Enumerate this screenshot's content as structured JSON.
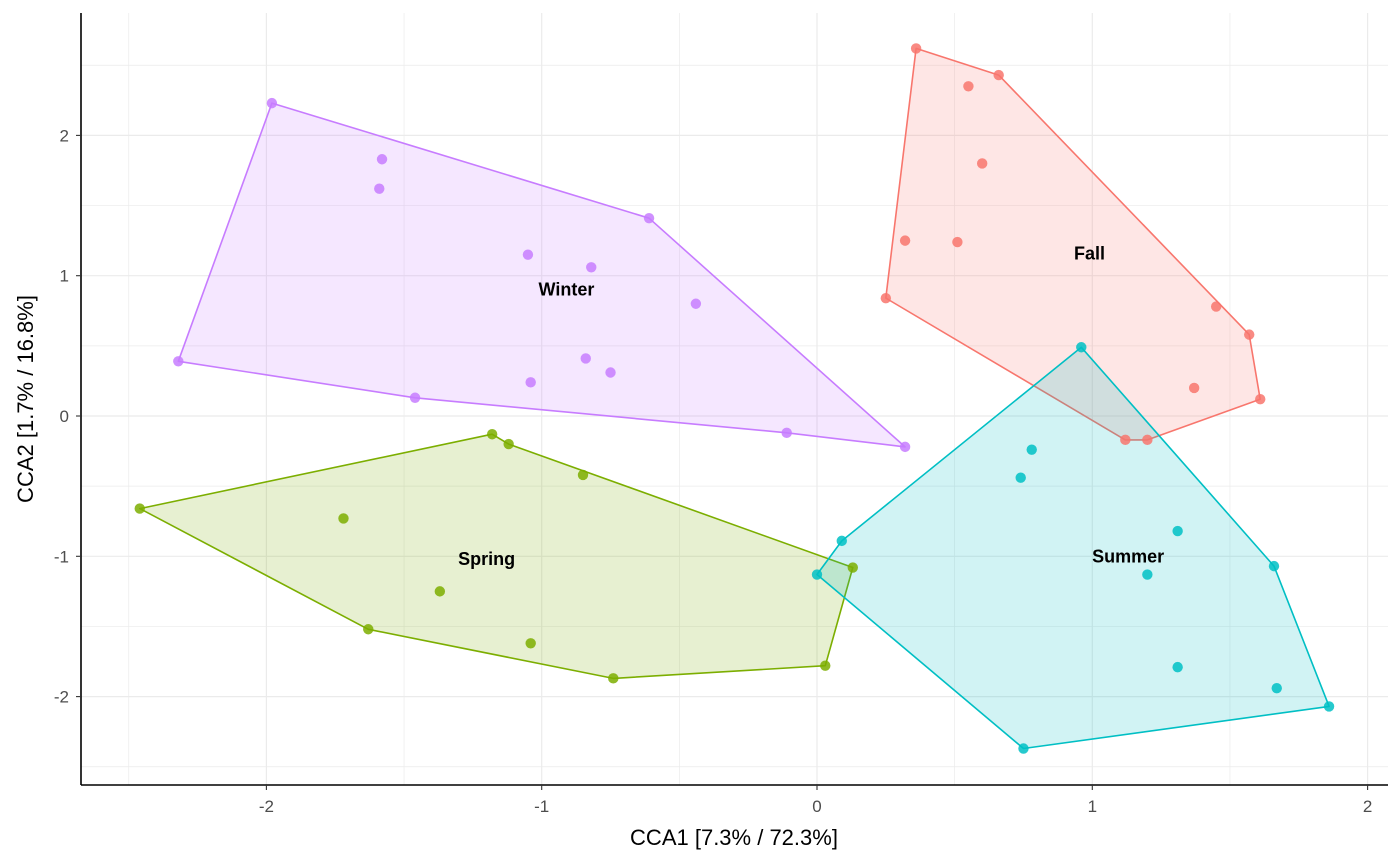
{
  "chart_data": {
    "type": "scatter",
    "title": "",
    "xlabel": "CCA1 [7.3% / 72.3%]",
    "ylabel": "CCA2 [1.7% / 16.8%]",
    "xlim": [
      -2.7,
      2.1
    ],
    "ylim": [
      -2.6,
      2.9
    ],
    "x_ticks": [
      -2,
      -1,
      0,
      1,
      2
    ],
    "y_ticks": [
      -2,
      -1,
      0,
      1,
      2
    ],
    "grid": true,
    "legend": "none",
    "series": [
      {
        "name": "Fall",
        "color": "#F8766D",
        "label_pos": [
          0.99,
          1.16
        ],
        "points": [
          [
            0.36,
            2.62
          ],
          [
            0.66,
            2.43
          ],
          [
            0.55,
            2.35
          ],
          [
            0.6,
            1.8
          ],
          [
            0.32,
            1.25
          ],
          [
            0.51,
            1.24
          ],
          [
            0.25,
            0.84
          ],
          [
            1.45,
            0.78
          ],
          [
            1.57,
            0.58
          ],
          [
            1.37,
            0.2
          ],
          [
            1.61,
            0.12
          ],
          [
            1.12,
            -0.17
          ],
          [
            1.2,
            -0.17
          ]
        ],
        "hull": [
          [
            0.36,
            2.62
          ],
          [
            0.66,
            2.43
          ],
          [
            1.57,
            0.58
          ],
          [
            1.61,
            0.12
          ],
          [
            1.2,
            -0.17
          ],
          [
            1.12,
            -0.17
          ],
          [
            0.25,
            0.84
          ]
        ]
      },
      {
        "name": "Spring",
        "color": "#7CAE00",
        "label_pos": [
          -1.2,
          -1.02
        ],
        "points": [
          [
            -1.18,
            -0.13
          ],
          [
            -1.12,
            -0.2
          ],
          [
            -0.85,
            -0.42
          ],
          [
            -2.46,
            -0.66
          ],
          [
            -1.72,
            -0.73
          ],
          [
            0.13,
            -1.08
          ],
          [
            -1.37,
            -1.25
          ],
          [
            -1.63,
            -1.52
          ],
          [
            -1.04,
            -1.62
          ],
          [
            0.03,
            -1.78
          ],
          [
            -0.74,
            -1.87
          ]
        ],
        "hull": [
          [
            -1.18,
            -0.13
          ],
          [
            -1.12,
            -0.2
          ],
          [
            0.13,
            -1.08
          ],
          [
            0.03,
            -1.78
          ],
          [
            -0.74,
            -1.87
          ],
          [
            -1.63,
            -1.52
          ],
          [
            -2.46,
            -0.66
          ]
        ]
      },
      {
        "name": "Summer",
        "color": "#00BFC4",
        "label_pos": [
          1.13,
          -1.0
        ],
        "points": [
          [
            0.96,
            0.49
          ],
          [
            0.78,
            -0.24
          ],
          [
            0.74,
            -0.44
          ],
          [
            1.31,
            -0.82
          ],
          [
            0.09,
            -0.89
          ],
          [
            0.0,
            -1.13
          ],
          [
            1.2,
            -1.13
          ],
          [
            1.66,
            -1.07
          ],
          [
            1.31,
            -1.79
          ],
          [
            1.67,
            -1.94
          ],
          [
            1.86,
            -2.07
          ],
          [
            0.75,
            -2.37
          ]
        ],
        "hull": [
          [
            0.96,
            0.49
          ],
          [
            1.66,
            -1.07
          ],
          [
            1.86,
            -2.07
          ],
          [
            0.75,
            -2.37
          ],
          [
            0.0,
            -1.13
          ],
          [
            0.09,
            -0.89
          ]
        ]
      },
      {
        "name": "Winter",
        "color": "#C77CFF",
        "label_pos": [
          -0.91,
          0.9
        ],
        "points": [
          [
            -1.98,
            2.23
          ],
          [
            -1.58,
            1.83
          ],
          [
            -1.59,
            1.62
          ],
          [
            -0.61,
            1.41
          ],
          [
            -1.05,
            1.15
          ],
          [
            -0.82,
            1.06
          ],
          [
            -0.44,
            0.8
          ],
          [
            -0.84,
            0.41
          ],
          [
            -0.75,
            0.31
          ],
          [
            -2.32,
            0.39
          ],
          [
            -1.04,
            0.24
          ],
          [
            -1.46,
            0.13
          ],
          [
            -0.11,
            -0.12
          ],
          [
            0.32,
            -0.22
          ]
        ],
        "hull": [
          [
            -1.98,
            2.23
          ],
          [
            -0.61,
            1.41
          ],
          [
            0.32,
            -0.22
          ],
          [
            -0.11,
            -0.12
          ],
          [
            -1.46,
            0.13
          ],
          [
            -2.32,
            0.39
          ]
        ]
      }
    ]
  }
}
